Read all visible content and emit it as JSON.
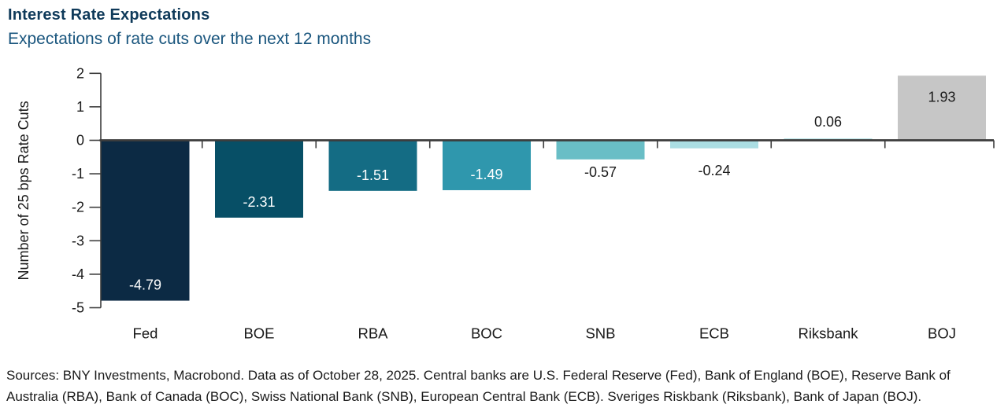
{
  "header": {
    "title": "Interest Rate Expectations",
    "subtitle": "Expectations of rate cuts over the next 12 months"
  },
  "chart_data": {
    "type": "bar",
    "title": "Interest Rate Expectations",
    "subtitle": "Expectations of rate cuts over the next 12 months",
    "categories": [
      "Fed",
      "BOE",
      "RBA",
      "BOC",
      "SNB",
      "ECB",
      "Riksbank",
      "BOJ"
    ],
    "values": [
      -4.79,
      -2.31,
      -1.51,
      -1.49,
      -0.57,
      -0.24,
      0.06,
      1.93
    ],
    "value_labels": [
      "-4.79",
      "-2.31",
      "-1.51",
      "-1.49",
      "-0.57",
      "-0.24",
      "0.06",
      "1.93"
    ],
    "bar_colors": [
      "#0c2a44",
      "#074f66",
      "#146c84",
      "#2f97ad",
      "#69bec6",
      "#abdee3",
      "#bfe6e9",
      "#c6c6c6"
    ],
    "value_label_colors": [
      "#ffffff",
      "#ffffff",
      "#ffffff",
      "#ffffff",
      "#1a1a1a",
      "#1a1a1a",
      "#1a1a1a",
      "#1a1a1a"
    ],
    "value_label_placements": [
      "inside-end",
      "inside-end",
      "inside-end",
      "inside-end",
      "outside-end",
      "outside-end",
      "outside-end",
      "inside-end"
    ],
    "xlabel": "",
    "ylabel": "Number of 25 bps Rate Cuts",
    "yticks": [
      "2",
      "1",
      "0",
      "-1",
      "-2",
      "-3",
      "-4",
      "-5"
    ],
    "ylim": [
      -5,
      2
    ],
    "grid": false,
    "legend": false,
    "axis_color": "#3d3d3d"
  },
  "footer": {
    "sources": "Sources: BNY Investments, Macrobond. Data as of October 28, 2025. Central banks are U.S. Federal Reserve (Fed), Bank of England (BOE), Reserve Bank of Australia (RBA), Bank of Canada (BOC), Swiss National Bank (SNB), European Central Bank (ECB). Sveriges Riskbank (Riksbank), Bank of Japan (BOJ)."
  }
}
